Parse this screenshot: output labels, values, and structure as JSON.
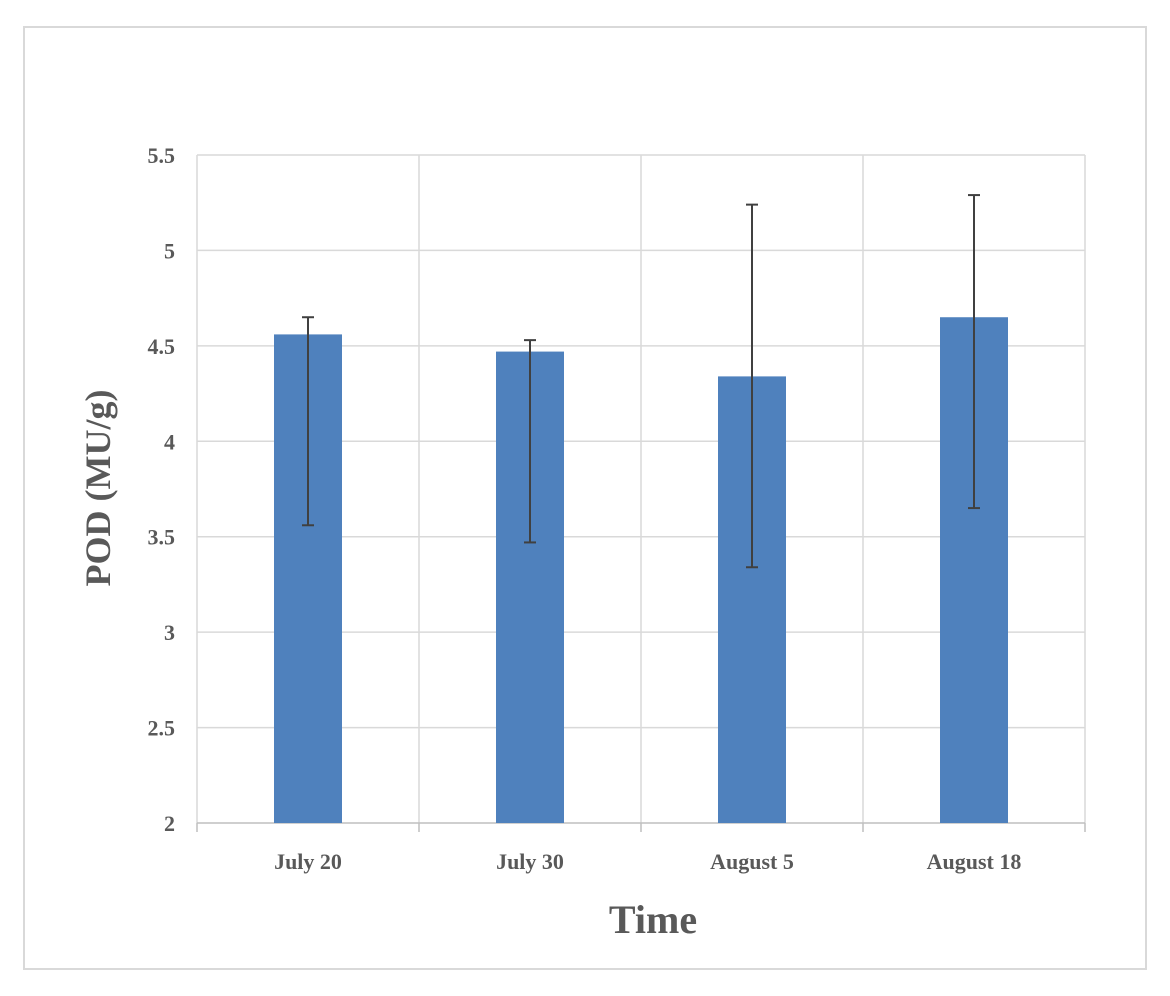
{
  "chart_data": {
    "type": "bar",
    "categories": [
      "July 20",
      "July 30",
      "August 5",
      "August 18"
    ],
    "values": [
      4.56,
      4.47,
      4.34,
      4.65
    ],
    "error": [
      {
        "low": 3.56,
        "high": 4.65
      },
      {
        "low": 3.47,
        "high": 4.53
      },
      {
        "low": 3.34,
        "high": 5.24
      },
      {
        "low": 3.65,
        "high": 5.29
      }
    ],
    "xlabel": "Time",
    "ylabel": "POD (MU/g)",
    "ylim": [
      2,
      5.5
    ],
    "yticks": [
      "2",
      "2.5",
      "3",
      "3.5",
      "4",
      "4.5",
      "5",
      "5.5"
    ],
    "grid": true,
    "legend": "none",
    "colors": {
      "bar": "#4f81bd",
      "error_bar": "#404040",
      "grid": "#d9d9d9",
      "text": "#595959"
    }
  }
}
